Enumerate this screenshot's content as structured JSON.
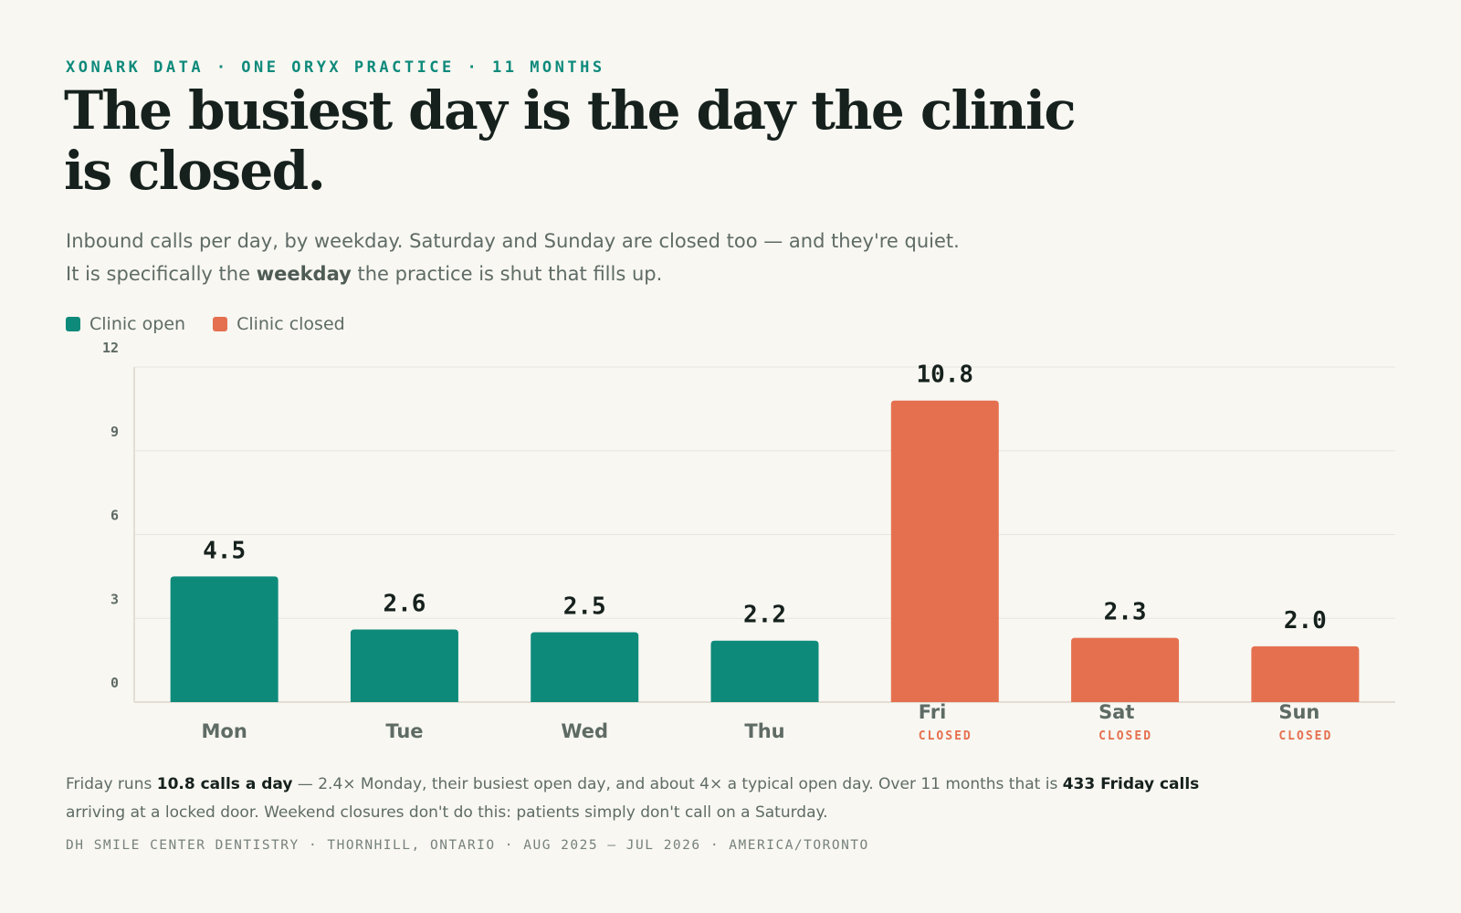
{
  "eyebrow": "XONARK DATA · ONE ORYX PRACTICE · 11 MONTHS",
  "headline": "The busiest day is the day the clinic is closed.",
  "dek": {
    "line1": "Inbound calls per day, by weekday. Saturday and Sunday are closed too — and they're quiet.",
    "line2_pre": "It is specifically the ",
    "line2_bold": "weekday",
    "line2_post": " the practice is shut that fills up."
  },
  "legend": {
    "open_label": "Clinic open",
    "closed_label": "Clinic closed"
  },
  "colors": {
    "open": "#0e8a7b",
    "closed": "#e5704f",
    "grid": "#e8e6df",
    "axis": "#e3ddd3"
  },
  "chart_data": {
    "type": "bar",
    "title": "",
    "xlabel": "",
    "ylabel": "",
    "ylim": [
      0,
      12
    ],
    "yticks": [
      "0",
      "3",
      "6",
      "9",
      "12"
    ],
    "grid": true,
    "legend_position": "top-left",
    "categories": [
      "Mon",
      "Tue",
      "Wed",
      "Thu",
      "Fri",
      "Sat",
      "Sun"
    ],
    "values": [
      4.5,
      2.6,
      2.5,
      2.2,
      10.8,
      2.3,
      2.0
    ],
    "value_labels": [
      "4.5",
      "2.6",
      "2.5",
      "2.2",
      "10.8",
      "2.3",
      "2.0"
    ],
    "status": [
      "open",
      "open",
      "open",
      "open",
      "closed",
      "closed",
      "closed"
    ],
    "closed_tag": "CLOSED"
  },
  "footnote": {
    "p1": "Friday runs ",
    "b1": "10.8 calls a day",
    "p2": " — 2.4× Monday, their busiest open day, and about 4× a typical open day. Over 11 months that is ",
    "b2": "433 Friday calls",
    "p3": " arriving at a locked door. Weekend closures don't do this: patients simply don't call on a Saturday."
  },
  "source": "DH SMILE CENTER DENTISTRY · THORNHILL, ONTARIO · AUG 2025 – JUL 2026 · AMERICA/TORONTO"
}
